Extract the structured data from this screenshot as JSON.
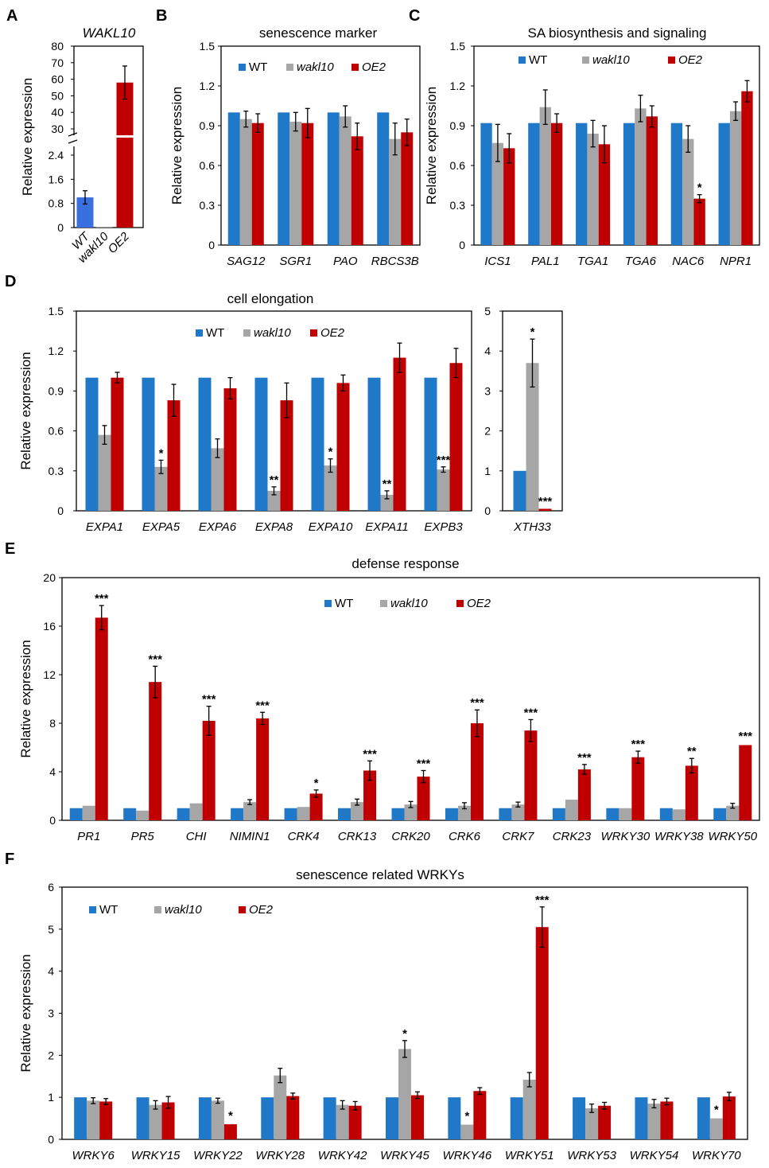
{
  "figure": {
    "legend": {
      "wt": "WT",
      "wakl10": "wakl10",
      "oe2": "OE2"
    },
    "colors": {
      "wt": "#1f78c8",
      "wakl10": "#a6a6a6",
      "oe2": "#c00000",
      "panelA_wt": "#3a6fe0"
    }
  },
  "chart_data": [
    {
      "panel": "A",
      "type": "bar",
      "title": "WAKL10",
      "ylabel": "Relative expression",
      "categories": [
        "WT",
        "wakl10",
        "OE2"
      ],
      "values": [
        1.0,
        0.0,
        58
      ],
      "errors": [
        0.22,
        0.0,
        10
      ],
      "axis_break": true,
      "lower_ticks": [
        "0",
        "0.8",
        "1.6",
        "2.4"
      ],
      "upper_ticks": [
        "30",
        "40",
        "50",
        "60",
        "70",
        "80"
      ],
      "lower_ylim": [
        0,
        2.4
      ],
      "upper_ylim": [
        30,
        80
      ]
    },
    {
      "panel": "B",
      "type": "bar",
      "title": "senescence marker",
      "ylabel": "Relative expression",
      "ylim": [
        0,
        1.5
      ],
      "yticks": [
        "0",
        "0.3",
        "0.6",
        "0.9",
        "1.2",
        "1.5"
      ],
      "categories": [
        "SAG12",
        "SGR1",
        "PAO",
        "RBCS3B"
      ],
      "series": [
        {
          "name": "WT",
          "values": [
            1.0,
            1.0,
            1.0,
            1.0
          ],
          "errors": [
            0.005,
            0.005,
            0.005,
            0.005
          ],
          "sig": [
            "",
            "",
            "",
            ""
          ]
        },
        {
          "name": "wakl10",
          "values": [
            0.95,
            0.93,
            0.97,
            0.8
          ],
          "errors": [
            0.06,
            0.07,
            0.08,
            0.12
          ],
          "sig": [
            "",
            "",
            "",
            ""
          ]
        },
        {
          "name": "OE2",
          "values": [
            0.92,
            0.92,
            0.82,
            0.85
          ],
          "errors": [
            0.07,
            0.11,
            0.1,
            0.1
          ],
          "sig": [
            "",
            "",
            "",
            ""
          ]
        }
      ]
    },
    {
      "panel": "C",
      "type": "bar",
      "title": "SA biosynthesis and signaling",
      "ylabel": "Relative expression",
      "ylim": [
        0,
        1.5
      ],
      "yticks": [
        "0",
        "0.3",
        "0.6",
        "0.9",
        "1.2",
        "1.5"
      ],
      "categories": [
        "ICS1",
        "PAL1",
        "TGA1",
        "TGA6",
        "NAC6",
        "NPR1"
      ],
      "series": [
        {
          "name": "WT",
          "values": [
            0.92,
            0.92,
            0.92,
            0.92,
            0.92,
            0.92
          ],
          "errors": [
            0.005,
            0.005,
            0.005,
            0.005,
            0.005,
            0.005
          ],
          "sig": [
            "",
            "",
            "",
            "",
            "",
            ""
          ]
        },
        {
          "name": "wakl10",
          "values": [
            0.77,
            1.04,
            0.84,
            1.03,
            0.8,
            1.01
          ],
          "errors": [
            0.14,
            0.13,
            0.1,
            0.1,
            0.1,
            0.07
          ],
          "sig": [
            "",
            "",
            "",
            "",
            "",
            ""
          ]
        },
        {
          "name": "OE2",
          "values": [
            0.73,
            0.92,
            0.76,
            0.97,
            0.35,
            1.16
          ],
          "errors": [
            0.11,
            0.07,
            0.14,
            0.08,
            0.03,
            0.08
          ],
          "sig": [
            "",
            "",
            "",
            "",
            "*",
            ""
          ]
        }
      ]
    },
    {
      "panel": "D",
      "type": "bar",
      "title": "cell elongation",
      "ylabel": "Relative expression",
      "ylim": [
        0,
        1.5
      ],
      "yticks": [
        "0",
        "0.3",
        "0.6",
        "0.9",
        "1.2",
        "1.5"
      ],
      "categories": [
        "EXPA1",
        "EXPA5",
        "EXPA6",
        "EXPA8",
        "EXPA10",
        "EXPA11",
        "EXPB3"
      ],
      "series": [
        {
          "name": "WT",
          "values": [
            1.0,
            1.0,
            1.0,
            1.0,
            1.0,
            1.0,
            1.0
          ],
          "errors": [
            0.005,
            0.005,
            0.005,
            0.005,
            0.005,
            0.005,
            0.005
          ],
          "sig": [
            "",
            "",
            "",
            "",
            "",
            "",
            ""
          ]
        },
        {
          "name": "wakl10",
          "values": [
            0.57,
            0.33,
            0.47,
            0.15,
            0.34,
            0.12,
            0.31
          ],
          "errors": [
            0.07,
            0.05,
            0.07,
            0.03,
            0.05,
            0.03,
            0.02
          ],
          "sig": [
            "",
            "*",
            "",
            "**",
            "*",
            "**",
            "***"
          ]
        },
        {
          "name": "OE2",
          "values": [
            1.0,
            0.83,
            0.92,
            0.83,
            0.96,
            1.15,
            1.11
          ],
          "errors": [
            0.04,
            0.12,
            0.08,
            0.13,
            0.06,
            0.11,
            0.11
          ],
          "sig": [
            "",
            "",
            "",
            "",
            "",
            "",
            ""
          ]
        }
      ]
    },
    {
      "panel": "D2",
      "type": "bar",
      "ylim": [
        0,
        5
      ],
      "yticks": [
        "0",
        "1",
        "2",
        "3",
        "4",
        "5"
      ],
      "categories": [
        "XTH33"
      ],
      "series": [
        {
          "name": "WT",
          "values": [
            1.0
          ],
          "errors": [
            0.01
          ],
          "sig": [
            ""
          ]
        },
        {
          "name": "wakl10",
          "values": [
            3.7
          ],
          "errors": [
            0.6
          ],
          "sig": [
            "*"
          ]
        },
        {
          "name": "OE2",
          "values": [
            0.05
          ],
          "errors": [
            0.01
          ],
          "sig": [
            "***"
          ]
        }
      ]
    },
    {
      "panel": "E",
      "type": "bar",
      "title": "defense response",
      "ylabel": "Relative expression",
      "ylim": [
        0,
        20
      ],
      "yticks": [
        "0",
        "4",
        "8",
        "12",
        "16",
        "20"
      ],
      "categories": [
        "PR1",
        "PR5",
        "CHI",
        "NIMIN1",
        "CRK4",
        "CRK13",
        "CRK20",
        "CRK6",
        "CRK7",
        "CRK23",
        "WRKY30",
        "WRKY38",
        "WRKY50"
      ],
      "series": [
        {
          "name": "WT",
          "values": [
            1,
            1,
            1,
            1,
            1,
            1,
            1,
            1,
            1,
            1,
            1,
            1,
            1
          ],
          "errors": [
            0.02,
            0.02,
            0.02,
            0.02,
            0.02,
            0.02,
            0.02,
            0.02,
            0.02,
            0.02,
            0.02,
            0.02,
            0.02
          ],
          "sig": [
            "",
            "",
            "",
            "",
            "",
            "",
            "",
            "",
            "",
            "",
            "",
            "",
            ""
          ]
        },
        {
          "name": "wakl10",
          "values": [
            1.2,
            0.8,
            1.4,
            1.5,
            1.1,
            1.5,
            1.3,
            1.2,
            1.3,
            1.7,
            1.0,
            0.9,
            1.2
          ],
          "errors": [
            0.1,
            0.15,
            0.1,
            0.2,
            0.1,
            0.25,
            0.25,
            0.25,
            0.2,
            0.15,
            0.1,
            0.1,
            0.2
          ],
          "sig": [
            "",
            "",
            "",
            "",
            "",
            "",
            "",
            "",
            "",
            "",
            "",
            "",
            ""
          ]
        },
        {
          "name": "OE2",
          "values": [
            16.7,
            11.4,
            8.2,
            8.4,
            2.2,
            4.1,
            3.6,
            8.0,
            7.4,
            4.2,
            5.2,
            4.5,
            6.2
          ],
          "errors": [
            1.0,
            1.3,
            1.2,
            0.5,
            0.3,
            0.8,
            0.5,
            1.1,
            0.9,
            0.4,
            0.5,
            0.6,
            0.15
          ],
          "sig": [
            "***",
            "***",
            "***",
            "***",
            "*",
            "***",
            "***",
            "***",
            "***",
            "***",
            "***",
            "**",
            "***"
          ]
        }
      ]
    },
    {
      "panel": "F",
      "type": "bar",
      "title": "senescence related WRKYs",
      "ylabel": "Relative expression",
      "ylim": [
        0,
        6
      ],
      "yticks": [
        "0",
        "1",
        "2",
        "3",
        "4",
        "5",
        "6"
      ],
      "categories": [
        "WRKY6",
        "WRKY15",
        "WRKY22",
        "WRKY28",
        "WRKY42",
        "WRKY45",
        "WRKY46",
        "WRKY51",
        "WRKY53",
        "WRKY54",
        "WRKY70"
      ],
      "series": [
        {
          "name": "WT",
          "values": [
            1,
            1,
            1,
            1,
            1,
            1,
            1,
            1,
            1,
            1,
            1
          ],
          "errors": [
            0.01,
            0.01,
            0.01,
            0.01,
            0.01,
            0.01,
            0.01,
            0.01,
            0.01,
            0.01,
            0.01
          ],
          "sig": [
            "",
            "",
            "",
            "",
            "",
            "",
            "",
            "",
            "",
            "",
            ""
          ]
        },
        {
          "name": "wakl10",
          "values": [
            0.92,
            0.82,
            0.92,
            1.52,
            0.82,
            2.15,
            0.35,
            1.42,
            0.74,
            0.85,
            0.5
          ],
          "errors": [
            0.07,
            0.1,
            0.06,
            0.17,
            0.1,
            0.2,
            0.04,
            0.17,
            0.1,
            0.1,
            0.04
          ],
          "sig": [
            "",
            "",
            "",
            "",
            "",
            "*",
            "*",
            "",
            "",
            "",
            "*"
          ]
        },
        {
          "name": "OE2",
          "values": [
            0.9,
            0.88,
            0.36,
            1.03,
            0.8,
            1.05,
            1.15,
            5.05,
            0.8,
            0.9,
            1.02
          ],
          "errors": [
            0.07,
            0.14,
            0.04,
            0.07,
            0.1,
            0.08,
            0.08,
            0.48,
            0.08,
            0.08,
            0.1
          ],
          "sig": [
            "",
            "",
            "*",
            "",
            "",
            "",
            "",
            "***",
            "",
            "",
            ""
          ]
        }
      ]
    }
  ]
}
